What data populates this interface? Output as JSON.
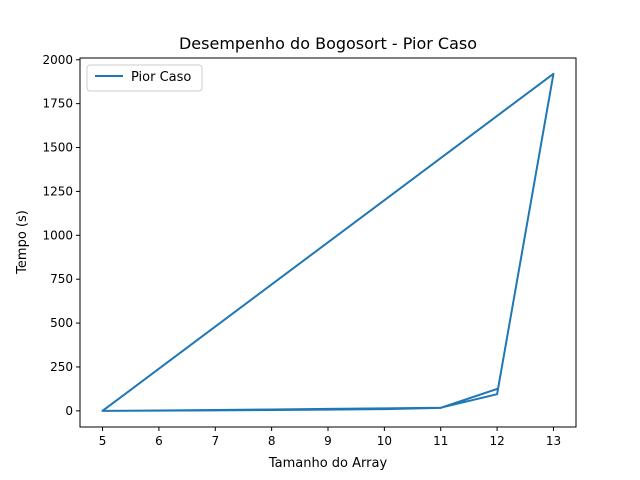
{
  "chart_data": {
    "type": "line",
    "title": "Desempenho do Bogosort - Pior Caso",
    "xlabel": "Tamanho do Array",
    "ylabel": "Tempo (s)",
    "xlim": [
      4.6,
      13.4
    ],
    "ylim": [
      -92,
      2010
    ],
    "x_ticks": [
      5,
      6,
      7,
      8,
      9,
      10,
      11,
      12,
      13
    ],
    "y_ticks": [
      0,
      250,
      500,
      750,
      1000,
      1250,
      1500,
      1750,
      2000
    ],
    "grid": false,
    "legend": {
      "location": "upper left",
      "entries": [
        "Pior Caso"
      ]
    },
    "series": [
      {
        "name": "Pior Caso",
        "color": "#1f77b4",
        "x": [
          5,
          6,
          7,
          8,
          9,
          10,
          11,
          12,
          13,
          5,
          6,
          7,
          8,
          9,
          10,
          11,
          12
        ],
        "y": [
          0,
          2,
          5,
          8,
          11,
          14,
          18,
          95,
          1920,
          0,
          1,
          3,
          5,
          7,
          10,
          17,
          125
        ]
      }
    ]
  }
}
